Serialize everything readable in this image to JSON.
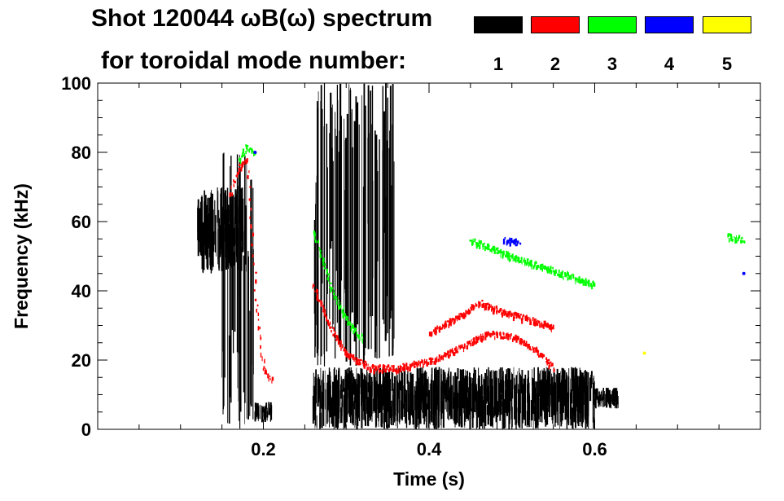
{
  "header": {
    "title_line1": "Shot 120044 ωB(ω) spectrum",
    "title_line2": "for toroidal mode number:"
  },
  "legend": [
    {
      "mode": "1",
      "color": "#000000"
    },
    {
      "mode": "2",
      "color": "#ff0000"
    },
    {
      "mode": "3",
      "color": "#00ff00"
    },
    {
      "mode": "4",
      "color": "#0000ff"
    },
    {
      "mode": "5",
      "color": "#ffff00"
    }
  ],
  "chart_data": {
    "type": "heatmap",
    "title": "Shot 120044 ωB(ω) spectrum for toroidal mode number",
    "xlabel": "Time (s)",
    "ylabel": "Frequency (kHz)",
    "xlim": [
      0.0,
      0.8
    ],
    "ylim": [
      0,
      100
    ],
    "xticks": [
      0.2,
      0.4,
      0.6
    ],
    "xtick_labels": [
      "0.2",
      "0.4",
      "0.6"
    ],
    "yticks": [
      0,
      20,
      40,
      60,
      80,
      100
    ],
    "ytick_labels": [
      "0",
      "20",
      "40",
      "60",
      "80",
      "100"
    ],
    "series": [
      {
        "name": "1",
        "color": "#000000",
        "regions": [
          {
            "t": [
              0.12,
              0.18
            ],
            "f": [
              45,
              70
            ]
          },
          {
            "t": [
              0.15,
              0.19
            ],
            "f": [
              0,
              80
            ]
          },
          {
            "t": [
              0.19,
              0.21
            ],
            "f": [
              2,
              8
            ]
          },
          {
            "t": [
              0.26,
              0.6
            ],
            "f": [
              0,
              18
            ]
          },
          {
            "t": [
              0.26,
              0.36
            ],
            "f": [
              18,
              100
            ]
          },
          {
            "t": [
              0.6,
              0.63
            ],
            "f": [
              6,
              12
            ]
          }
        ]
      },
      {
        "name": "2",
        "color": "#ff0000",
        "tracks": [
          {
            "t": [
              0.16,
              0.17,
              0.18,
              0.19,
              0.2,
              0.21
            ],
            "f": [
              68,
              76,
              78,
              40,
              18,
              14
            ]
          },
          {
            "t": [
              0.26,
              0.28,
              0.3,
              0.33,
              0.36,
              0.4,
              0.44,
              0.47,
              0.5,
              0.53,
              0.55
            ],
            "f": [
              42,
              30,
              22,
              18,
              18,
              20,
              24,
              28,
              27,
              23,
              18
            ]
          },
          {
            "t": [
              0.4,
              0.43,
              0.46,
              0.49,
              0.52,
              0.55
            ],
            "f": [
              28,
              32,
              37,
              34,
              32,
              30
            ]
          }
        ]
      },
      {
        "name": "3",
        "color": "#00ff00",
        "tracks": [
          {
            "t": [
              0.17,
              0.18,
              0.19
            ],
            "f": [
              78,
              82,
              80
            ]
          },
          {
            "t": [
              0.26,
              0.28,
              0.3,
              0.32
            ],
            "f": [
              58,
              42,
              32,
              26
            ]
          },
          {
            "t": [
              0.45,
              0.5,
              0.55,
              0.6
            ],
            "f": [
              55,
              50,
              46,
              42
            ]
          },
          {
            "t": [
              0.76,
              0.78
            ],
            "f": [
              56,
              55
            ]
          }
        ]
      },
      {
        "name": "4",
        "color": "#0000ff",
        "tracks": [
          {
            "t": [
              0.19
            ],
            "f": [
              80
            ]
          },
          {
            "t": [
              0.49,
              0.51
            ],
            "f": [
              55,
              54
            ]
          },
          {
            "t": [
              0.78
            ],
            "f": [
              45
            ]
          }
        ]
      },
      {
        "name": "5",
        "color": "#ffff00",
        "tracks": [
          {
            "t": [
              0.66
            ],
            "f": [
              22
            ]
          }
        ]
      }
    ]
  }
}
